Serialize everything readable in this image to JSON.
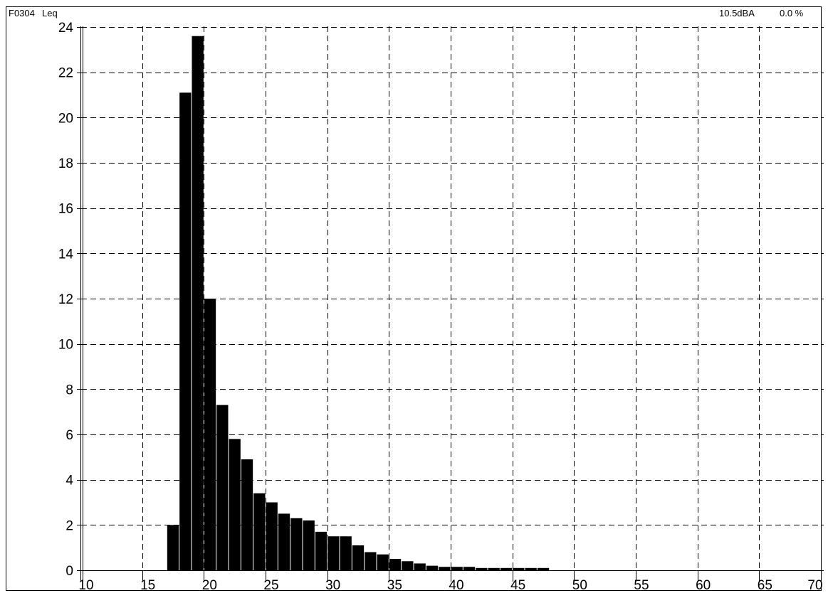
{
  "header": {
    "file_id": "F0304",
    "parameter": "Leq",
    "level": "10.5dBA",
    "percent": "0.0 %"
  },
  "chart_data": {
    "type": "bar",
    "title": "",
    "xlabel": "",
    "ylabel": "",
    "xlim": [
      10,
      70
    ],
    "ylim": [
      0,
      24
    ],
    "x_ticks": [
      10,
      15,
      20,
      25,
      30,
      35,
      40,
      45,
      50,
      55,
      60,
      65,
      70
    ],
    "y_ticks": [
      0,
      2,
      4,
      6,
      8,
      10,
      12,
      14,
      16,
      18,
      20,
      22,
      24
    ],
    "grid": true,
    "bin_width": 1,
    "bins": [
      17,
      18,
      19,
      20,
      21,
      22,
      23,
      24,
      25,
      26,
      27,
      28,
      29,
      30,
      31,
      32,
      33,
      34,
      35,
      36,
      37,
      38,
      39,
      40,
      41,
      42,
      43,
      44,
      45,
      46,
      47
    ],
    "values": [
      2.0,
      21.1,
      23.6,
      12.0,
      7.3,
      5.8,
      4.9,
      3.4,
      3.0,
      2.5,
      2.3,
      2.2,
      1.7,
      1.5,
      1.5,
      1.1,
      0.8,
      0.7,
      0.5,
      0.4,
      0.3,
      0.2,
      0.15,
      0.15,
      0.15,
      0.1,
      0.1,
      0.1,
      0.1,
      0.1,
      0.1
    ],
    "bar_color": "#000000"
  }
}
